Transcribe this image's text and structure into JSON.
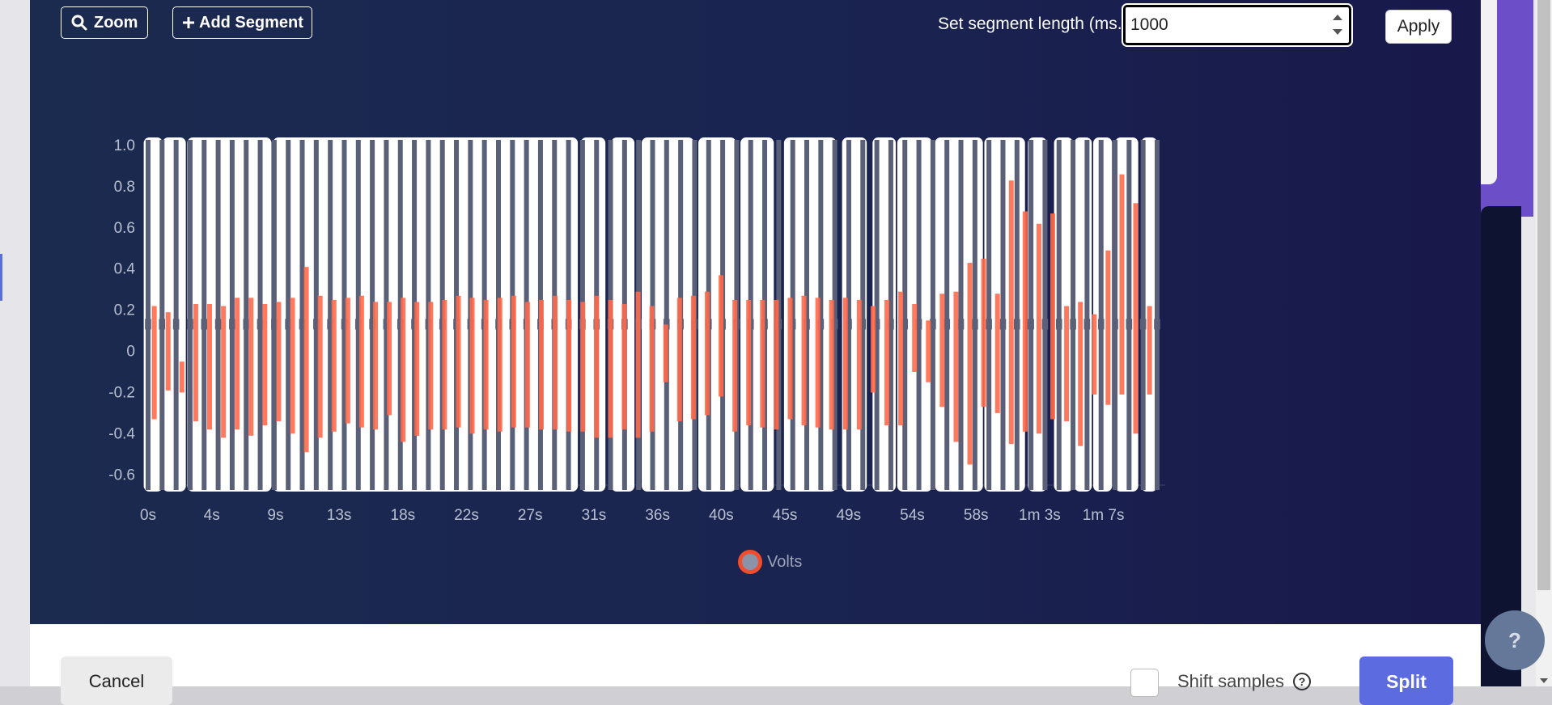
{
  "toolbar": {
    "zoom_label": "Zoom",
    "add_segment_label": "Add Segment",
    "segment_length_label": "Set segment length (ms.):",
    "segment_length_value": "1000",
    "apply_label": "Apply"
  },
  "footer": {
    "cancel_label": "Cancel",
    "shift_samples_label": "Shift samples",
    "split_label": "Split",
    "help_label": "?"
  },
  "colors": {
    "signal": "#ff6a4d",
    "marker": "#5a6078",
    "segment": "#ffffff",
    "background": "#1a2350"
  },
  "chart_data": {
    "type": "line",
    "ylim": [
      -0.65,
      1.0
    ],
    "yticks": [
      "1.0",
      "0.8",
      "0.6",
      "0.4",
      "0.2",
      "0",
      "-0.2",
      "-0.4",
      "-0.6"
    ],
    "xticks": [
      "0s",
      "4s",
      "9s",
      "13s",
      "18s",
      "22s",
      "27s",
      "31s",
      "36s",
      "40s",
      "45s",
      "49s",
      "54s",
      "58s",
      "1m 3s",
      "1m 7s"
    ],
    "xlim_seconds": [
      0,
      69.5
    ],
    "series": [
      {
        "name": "Volts"
      }
    ],
    "segments_seconds": [
      [
        -0.3,
        1.0
      ],
      [
        1.0,
        2.6
      ],
      [
        2.7,
        8.5
      ],
      [
        8.6,
        29.6
      ],
      [
        29.8,
        31.5
      ],
      [
        31.9,
        33.5
      ],
      [
        34.0,
        37.6
      ],
      [
        37.9,
        40.5
      ],
      [
        40.8,
        43.1
      ],
      [
        43.8,
        47.4
      ],
      [
        47.8,
        49.5
      ],
      [
        49.9,
        51.5
      ],
      [
        51.6,
        54.0
      ],
      [
        54.2,
        57.5
      ],
      [
        57.6,
        60.4
      ],
      [
        60.6,
        61.9
      ],
      [
        62.4,
        63.7
      ],
      [
        63.8,
        65.0
      ],
      [
        65.1,
        66.4
      ],
      [
        66.6,
        68.2
      ],
      [
        68.4,
        69.5
      ]
    ],
    "peaks": [
      0.22,
      0.19,
      -0.05,
      0.23,
      0.23,
      0.22,
      0.26,
      0.26,
      0.23,
      0.24,
      0.26,
      0.41,
      0.27,
      0.25,
      0.26,
      0.27,
      0.24,
      0.24,
      0.26,
      0.24,
      0.24,
      0.25,
      0.27,
      0.26,
      0.25,
      0.26,
      0.27,
      0.24,
      0.25,
      0.27,
      0.25,
      0.24,
      0.27,
      0.25,
      0.23,
      0.29,
      0.22,
      0.13,
      0.26,
      0.27,
      0.29,
      0.37,
      0.25,
      0.25,
      0.25,
      0.25,
      0.26,
      0.27,
      0.26,
      0.25,
      0.26,
      0.25,
      0.22,
      0.25,
      0.29,
      0.23,
      0.15,
      0.28,
      0.29,
      0.43,
      0.45,
      0.28,
      0.83,
      0.68,
      0.62,
      0.67,
      0.22,
      0.24,
      0.18,
      0.49,
      0.86,
      0.72,
      0.22
    ],
    "troughs": [
      -0.33,
      -0.19,
      -0.2,
      -0.34,
      -0.38,
      -0.42,
      -0.38,
      -0.41,
      -0.36,
      -0.34,
      -0.4,
      -0.49,
      -0.42,
      -0.39,
      -0.35,
      -0.37,
      -0.38,
      -0.31,
      -0.44,
      -0.41,
      -0.38,
      -0.38,
      -0.37,
      -0.4,
      -0.38,
      -0.39,
      -0.37,
      -0.37,
      -0.38,
      -0.38,
      -0.39,
      -0.39,
      -0.42,
      -0.42,
      -0.38,
      -0.42,
      -0.39,
      -0.15,
      -0.34,
      -0.33,
      -0.31,
      -0.22,
      -0.39,
      -0.36,
      -0.37,
      -0.38,
      -0.33,
      -0.36,
      -0.37,
      -0.38,
      -0.38,
      -0.38,
      -0.2,
      -0.36,
      -0.36,
      -0.1,
      -0.15,
      -0.27,
      -0.44,
      -0.55,
      -0.27,
      -0.3,
      -0.45,
      -0.39,
      -0.4,
      -0.33,
      -0.34,
      -0.46,
      -0.21,
      -0.26,
      -0.21,
      -0.4,
      -0.21
    ]
  }
}
